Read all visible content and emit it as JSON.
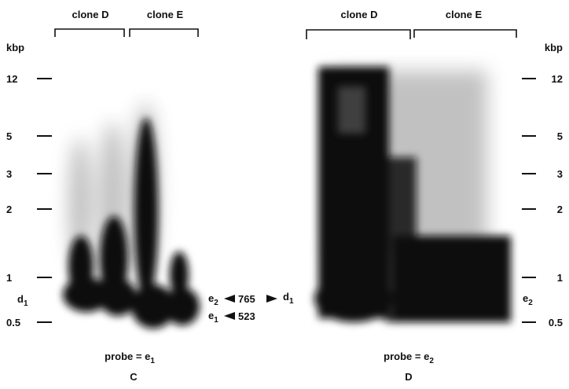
{
  "left_panel": {
    "lane_groups": [
      "clone D",
      "clone E"
    ],
    "axis_unit": "kbp",
    "size_markers": [
      "12",
      "5",
      "3",
      "2",
      "1",
      "0.5"
    ],
    "band_label": {
      "letter": "d",
      "index": "1"
    },
    "probe": {
      "prefix": "probe =",
      "letter": "e",
      "index": "1"
    },
    "panel_label": "C"
  },
  "center_labels": [
    {
      "letter": "e",
      "index": "2",
      "size": "765"
    },
    {
      "letter": "e",
      "index": "1",
      "size": "523"
    }
  ],
  "right_panel": {
    "lane_groups": [
      "clone D",
      "clone E"
    ],
    "axis_unit": "kbp",
    "size_markers": [
      "12",
      "5",
      "3",
      "2",
      "1",
      "0.5"
    ],
    "band_labels": [
      {
        "letter": "d",
        "index": "1"
      },
      {
        "letter": "e",
        "index": "2"
      }
    ],
    "probe": {
      "prefix": "probe =",
      "letter": "e",
      "index": "2"
    },
    "panel_label": "D"
  }
}
